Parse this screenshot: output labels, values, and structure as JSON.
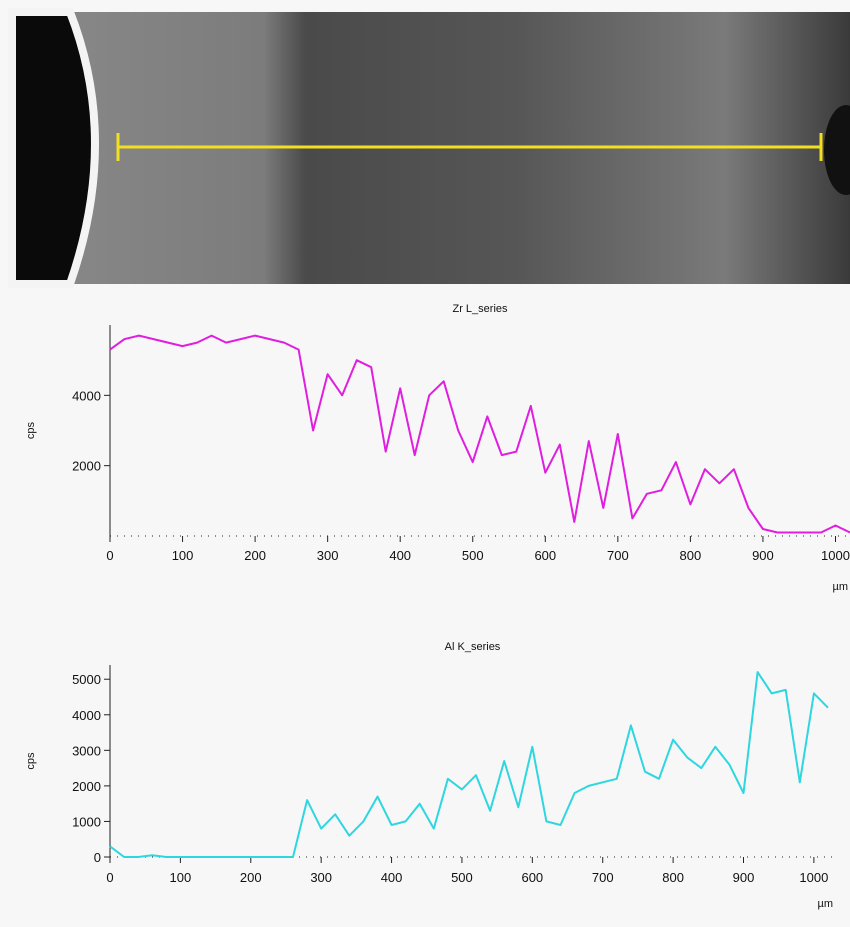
{
  "chart_data": [
    {
      "type": "line",
      "title": "Zr L_series",
      "ylabel": "cps",
      "xlabel": "µm",
      "xlim": [
        0,
        1020
      ],
      "ylim": [
        0,
        6000
      ],
      "xticks": [
        0,
        100,
        200,
        300,
        400,
        500,
        600,
        700,
        800,
        900,
        1000
      ],
      "yticks": [
        2000,
        4000
      ],
      "series": [
        {
          "color": "#e01ee0",
          "x": [
            0,
            20,
            40,
            60,
            80,
            100,
            120,
            140,
            160,
            180,
            200,
            220,
            240,
            260,
            280,
            300,
            320,
            340,
            360,
            380,
            400,
            420,
            440,
            460,
            480,
            500,
            520,
            540,
            560,
            580,
            600,
            620,
            640,
            660,
            680,
            700,
            720,
            740,
            760,
            780,
            800,
            820,
            840,
            860,
            880,
            900,
            920,
            940,
            960,
            980,
            1000,
            1020
          ],
          "values": [
            5300,
            5600,
            5700,
            5600,
            5500,
            5400,
            5500,
            5700,
            5500,
            5600,
            5700,
            5600,
            5500,
            5300,
            3000,
            4600,
            4000,
            5000,
            4800,
            2400,
            4200,
            2300,
            4000,
            4400,
            3000,
            2100,
            3400,
            2300,
            2400,
            3700,
            1800,
            2600,
            400,
            2700,
            800,
            2900,
            500,
            1200,
            1300,
            2100,
            900,
            1900,
            1500,
            1900,
            800,
            200,
            100,
            100,
            100,
            100,
            300,
            100
          ]
        }
      ]
    },
    {
      "type": "line",
      "title": "Al K_series",
      "ylabel": "cps",
      "xlabel": "µm",
      "xlim": [
        0,
        1030
      ],
      "ylim": [
        0,
        5400
      ],
      "xticks": [
        0,
        100,
        200,
        300,
        400,
        500,
        600,
        700,
        800,
        900,
        1000
      ],
      "yticks": [
        0,
        1000,
        2000,
        3000,
        4000,
        5000
      ],
      "series": [
        {
          "color": "#2ed6e0",
          "x": [
            0,
            20,
            40,
            60,
            80,
            100,
            120,
            140,
            160,
            180,
            200,
            220,
            240,
            260,
            280,
            300,
            320,
            340,
            360,
            380,
            400,
            420,
            440,
            460,
            480,
            500,
            520,
            540,
            560,
            580,
            600,
            620,
            640,
            660,
            680,
            700,
            720,
            740,
            760,
            780,
            800,
            820,
            840,
            860,
            880,
            900,
            920,
            940,
            960,
            980,
            1000,
            1020
          ],
          "values": [
            300,
            0,
            0,
            50,
            0,
            0,
            0,
            0,
            0,
            0,
            0,
            0,
            0,
            0,
            1600,
            800,
            1200,
            600,
            1000,
            1700,
            900,
            1000,
            1500,
            800,
            2200,
            1900,
            2300,
            1300,
            2700,
            1400,
            3100,
            1000,
            900,
            1800,
            2000,
            2100,
            2200,
            3700,
            2400,
            2200,
            3300,
            2800,
            2500,
            3100,
            2600,
            1800,
            5200,
            4600,
            4700,
            2100,
            4600,
            4200
          ]
        }
      ]
    }
  ]
}
